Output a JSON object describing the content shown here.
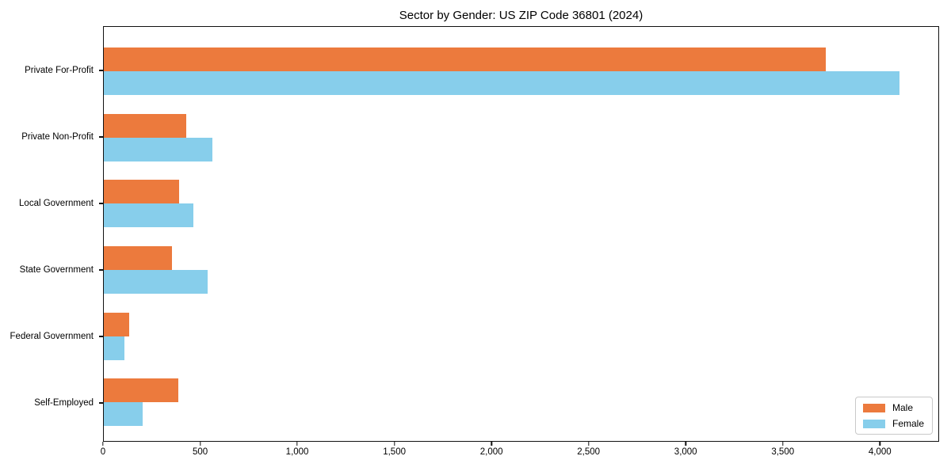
{
  "title": "Sector by Gender: US ZIP Code 36801 (2024)",
  "chart_data": {
    "type": "bar",
    "orientation": "horizontal",
    "title": "Sector by Gender: US ZIP Code 36801 (2024)",
    "categories": [
      "Private For-Profit",
      "Private Non-Profit",
      "Local Government",
      "State Government",
      "Federal Government",
      "Self-Employed"
    ],
    "series": [
      {
        "name": "Male",
        "color": "#ec7a3d",
        "values": [
          3725,
          425,
          390,
          350,
          130,
          385
        ]
      },
      {
        "name": "Female",
        "color": "#87ceeb",
        "values": [
          4105,
          560,
          460,
          535,
          105,
          200
        ]
      }
    ],
    "xlabel": "",
    "ylabel": "",
    "xlim": [
      0,
      4305
    ],
    "xticks": [
      0,
      500,
      1000,
      1500,
      2000,
      2500,
      3000,
      3500,
      4000
    ],
    "xtick_labels": [
      "0",
      "500",
      "1,000",
      "1,500",
      "2,000",
      "2,500",
      "3,000",
      "3,500",
      "4,000"
    ],
    "grid": false,
    "legend_position": "lower right"
  },
  "legend": {
    "entries": [
      {
        "label": "Male",
        "color": "#ec7a3d"
      },
      {
        "label": "Female",
        "color": "#87ceeb"
      }
    ]
  }
}
